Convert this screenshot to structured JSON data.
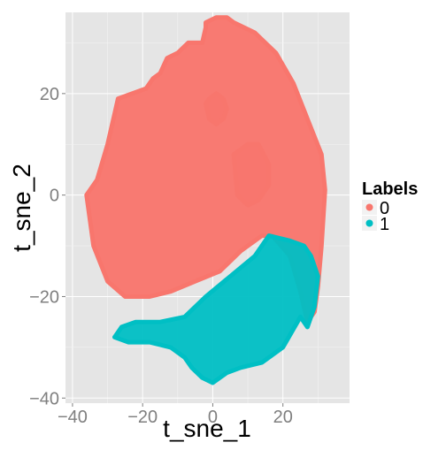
{
  "chart_data": {
    "type": "scatter",
    "xlabel": "t_sne_1",
    "ylabel": "t_sne_2",
    "xlim": [
      -42,
      39
    ],
    "ylim": [
      -41,
      36
    ],
    "x_ticks": [
      -40,
      -20,
      0,
      20
    ],
    "y_ticks": [
      -40,
      -20,
      0,
      20
    ],
    "x_tick_labels": [
      "−40",
      "−20",
      "0",
      "20"
    ],
    "y_tick_labels": [
      "−40",
      "−20",
      "0",
      "20"
    ],
    "grid": true,
    "panel_background": "#e5e5e5",
    "legend": {
      "title": "Labels",
      "placement": "right",
      "entries": [
        {
          "label": "0",
          "color": "#f8766d"
        },
        {
          "label": "1",
          "color": "#00bfc4"
        }
      ]
    },
    "series": [
      {
        "name": "0",
        "color": "#f8766d",
        "regions": [
          {
            "x": [
              -36,
              -33,
              -30,
              -28,
              -27,
              -23,
              -19,
              -17,
              -15,
              -13,
              -10,
              -7,
              -3,
              -2,
              -2,
              1,
              4,
              6,
              12,
              18,
              23,
              27,
              31,
              32,
              31,
              30,
              29,
              27,
              25,
              22,
              17,
              14,
              8,
              2,
              -5,
              -12,
              -18,
              -25,
              -30,
              -34,
              -36
            ],
            "y": [
              0,
              3,
              10,
              16,
              19,
              20,
              21,
              23,
              24,
              27,
              28,
              30,
              30,
              33,
              34,
              35,
              35,
              34,
              32,
              28,
              22,
              15,
              8,
              1,
              -10,
              -18,
              -23,
              -25,
              -19,
              -12,
              -8,
              -8,
              -11,
              -15,
              -17,
              -19,
              -20,
              -20,
              -17,
              -10,
              0
            ]
          },
          {
            "x": [
              -2,
              -1,
              1,
              3,
              4,
              3,
              1,
              -1,
              -2
            ],
            "y": [
              18,
              19,
              20,
              19,
              17,
              15,
              14,
              15,
              18
            ]
          },
          {
            "x": [
              6,
              10,
              13,
              16,
              16,
              13,
              10,
              7,
              6
            ],
            "y": [
              8,
              10,
              10,
              6,
              2,
              -1,
              -2,
              0,
              8
            ]
          }
        ]
      },
      {
        "name": "1",
        "color": "#00bfc4",
        "regions": [
          {
            "x": [
              -28,
              -26,
              -22,
              -15,
              -8,
              -2,
              5,
              12,
              16,
              22,
              26,
              28,
              30,
              29,
              27,
              25,
              20,
              14,
              8,
              4,
              0,
              -3,
              -6,
              -8,
              -10,
              -12,
              -18,
              -24,
              -28
            ],
            "y": [
              -28,
              -26,
              -25,
              -25,
              -24,
              -20,
              -16,
              -12,
              -8,
              -9,
              -10,
              -12,
              -16,
              -22,
              -26,
              -24,
              -30,
              -33,
              -34,
              -35,
              -37,
              -36,
              -34,
              -32,
              -31,
              -30,
              -29,
              -29,
              -28
            ]
          }
        ]
      }
    ]
  }
}
